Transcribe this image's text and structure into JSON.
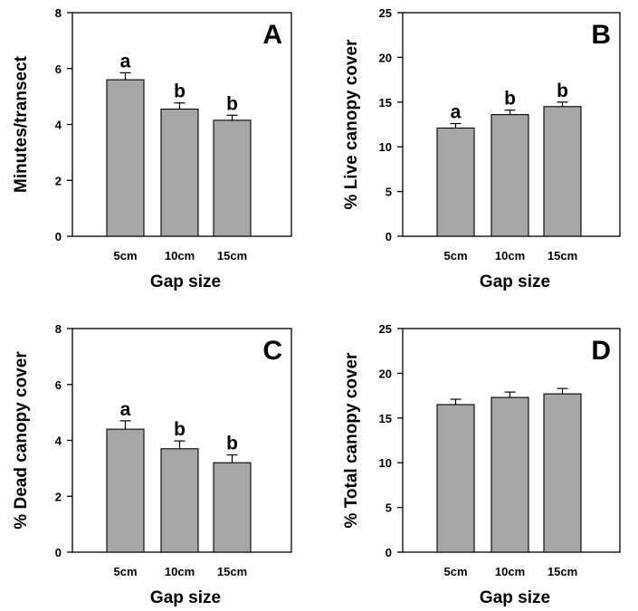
{
  "figure": {
    "bar_color": "#a6a6a6",
    "bar_stroke": "#000000",
    "axis_color": "#000000"
  },
  "chart_data": [
    {
      "type": "bar",
      "panel_label": "A",
      "categories": [
        "5cm",
        "10cm",
        "15cm"
      ],
      "values": [
        5.6,
        4.55,
        4.15
      ],
      "errors": [
        0.25,
        0.22,
        0.18
      ],
      "significance": [
        "a",
        "b",
        "b"
      ],
      "xlabel": "Gap size",
      "ylabel": "Minutes/transect",
      "ylim": [
        0,
        8
      ],
      "yticks": [
        0,
        2,
        4,
        6,
        8
      ],
      "grid": false
    },
    {
      "type": "bar",
      "panel_label": "B",
      "categories": [
        "5cm",
        "10cm",
        "15cm"
      ],
      "values": [
        12.1,
        13.6,
        14.5
      ],
      "errors": [
        0.5,
        0.5,
        0.5
      ],
      "significance": [
        "a",
        "b",
        "b"
      ],
      "xlabel": "Gap size",
      "ylabel": "% Live canopy cover",
      "ylim": [
        0,
        25
      ],
      "yticks": [
        0,
        5,
        10,
        15,
        20,
        25
      ],
      "grid": false
    },
    {
      "type": "bar",
      "panel_label": "C",
      "categories": [
        "5cm",
        "10cm",
        "15cm"
      ],
      "values": [
        4.4,
        3.7,
        3.2
      ],
      "errors": [
        0.3,
        0.28,
        0.28
      ],
      "significance": [
        "a",
        "b",
        "b"
      ],
      "xlabel": "Gap size",
      "ylabel": "% Dead canopy cover",
      "ylim": [
        0,
        8
      ],
      "yticks": [
        0,
        2,
        4,
        6,
        8
      ],
      "grid": false
    },
    {
      "type": "bar",
      "panel_label": "D",
      "categories": [
        "5cm",
        "10cm",
        "15cm"
      ],
      "values": [
        16.5,
        17.3,
        17.7
      ],
      "errors": [
        0.6,
        0.6,
        0.6
      ],
      "significance": [
        "",
        "",
        ""
      ],
      "xlabel": "Gap size",
      "ylabel": "% Total canopy cover",
      "ylim": [
        0,
        25
      ],
      "yticks": [
        0,
        5,
        10,
        15,
        20,
        25
      ],
      "grid": false
    }
  ]
}
